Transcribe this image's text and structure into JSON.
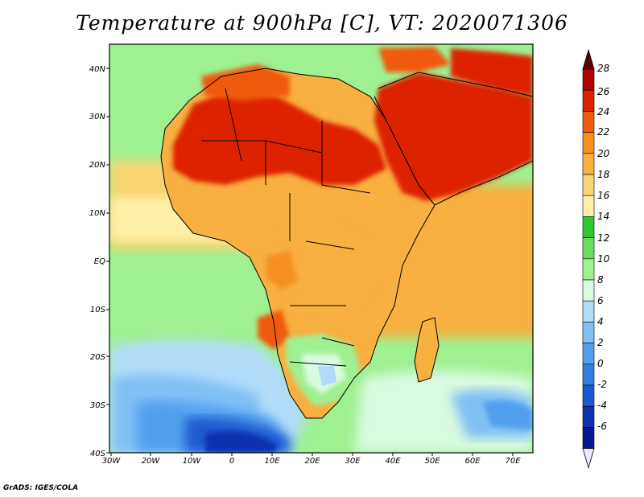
{
  "title": "Temperature at 900hPa [C], VT: 2020071306",
  "credit": "GrADS: IGES/COLA",
  "map": {
    "lon_ticks": [
      "30W",
      "20W",
      "10W",
      "0",
      "10E",
      "20E",
      "30E",
      "40E",
      "50E",
      "60E",
      "70E"
    ],
    "lat_ticks": [
      "40N",
      "30N",
      "20N",
      "10N",
      "EQ",
      "10S",
      "20S",
      "30S",
      "40S"
    ]
  },
  "colorbar": {
    "labels": [
      "28",
      "26",
      "24",
      "22",
      "20",
      "18",
      "16",
      "14",
      "12",
      "10",
      "8",
      "6",
      "4",
      "2",
      "0",
      "-2",
      "-4",
      "-6"
    ],
    "colors": [
      "#5a0000",
      "#b30000",
      "#dd2200",
      "#f05a10",
      "#f59020",
      "#f8b040",
      "#fad470",
      "#fff0a8",
      "#2ec82e",
      "#6adc5e",
      "#9ef090",
      "#d8fae0",
      "#b0dcfa",
      "#80c0f5",
      "#52a0ee",
      "#3280e0",
      "#1c5ad0",
      "#0e32b0",
      "#081890",
      "#e8e8ff"
    ]
  },
  "colors": {
    "land_border": "#000000",
    "ocean_base": "#9ef090"
  }
}
